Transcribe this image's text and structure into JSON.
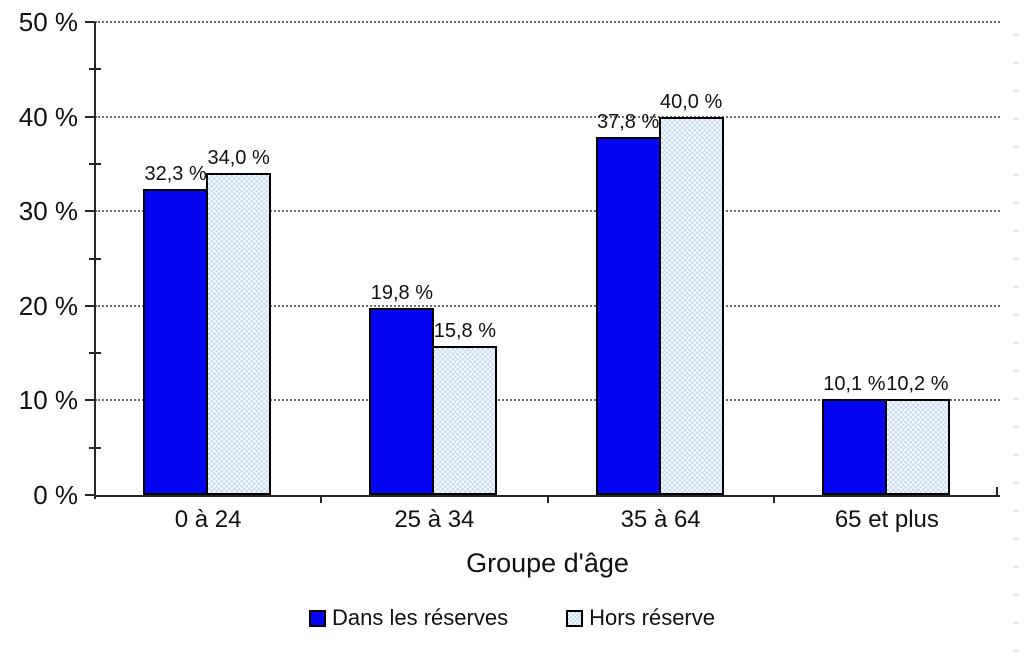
{
  "figure": {
    "background_color": "#ffffff",
    "axis_color": "#262626",
    "gridline_color": "#6e6e6e",
    "text_color": "#111111"
  },
  "chart_data": {
    "type": "bar",
    "title": "",
    "xlabel": "Groupe d'âge",
    "ylabel": "",
    "categories": [
      "0 à 24",
      "25 à 34",
      "35 à 64",
      "65 et plus"
    ],
    "series": [
      {
        "name": "Dans les réserves",
        "values": [
          32.3,
          19.8,
          37.8,
          10.1
        ],
        "labels": [
          "32,3 %",
          "19,8 %",
          "37,8 %",
          "10,1 %"
        ],
        "color": "#0505f2",
        "pattern": "solid"
      },
      {
        "name": "Hors réserve",
        "values": [
          34.0,
          15.8,
          40.0,
          10.2
        ],
        "labels": [
          "34,0 %",
          "15,8 %",
          "40,0 %",
          "10,2 %"
        ],
        "color": "#d3e4f5",
        "pattern": "checker",
        "pattern_colors": [
          "#c8ddf1",
          "#f4f9fe"
        ]
      }
    ],
    "ylim": [
      0,
      50
    ],
    "yticks": [
      {
        "value": 0,
        "label": "0 %"
      },
      {
        "value": 10,
        "label": "10 %"
      },
      {
        "value": 20,
        "label": "20 %"
      },
      {
        "value": 30,
        "label": "30 %"
      },
      {
        "value": 40,
        "label": "40 %"
      },
      {
        "value": 50,
        "label": "50 %"
      }
    ],
    "minor_yticks": [
      5,
      15,
      25,
      35,
      45
    ],
    "grid": "horizontal-dotted-at-major-ticks",
    "legend_position": "bottom"
  }
}
